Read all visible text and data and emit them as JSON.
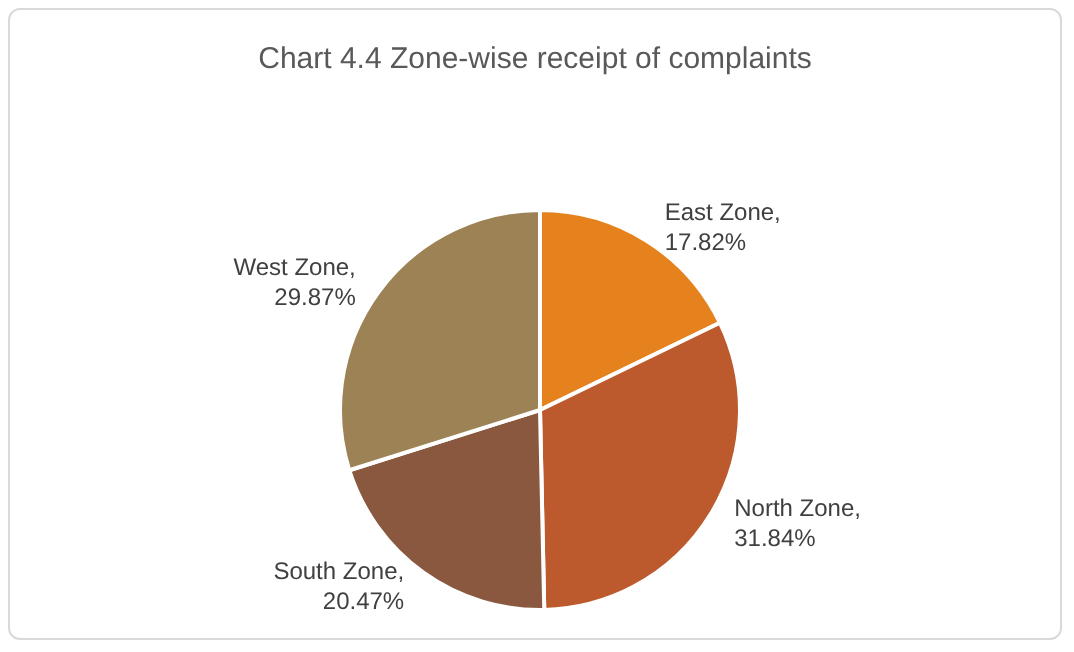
{
  "chart_data": {
    "type": "pie",
    "title": "Chart 4.4 Zone-wise receipt of complaints",
    "categories": [
      "East Zone",
      "North Zone",
      "South Zone",
      "West Zone"
    ],
    "values": [
      17.82,
      31.84,
      20.47,
      29.87
    ],
    "value_labels": [
      ",\n17.82%",
      ",\n31.84%",
      ",\n20.47%",
      ",\n29.87%"
    ],
    "colors": [
      "#e6821e",
      "#bc5a2d",
      "#8a583f",
      "#9c8255"
    ],
    "legend": false
  }
}
